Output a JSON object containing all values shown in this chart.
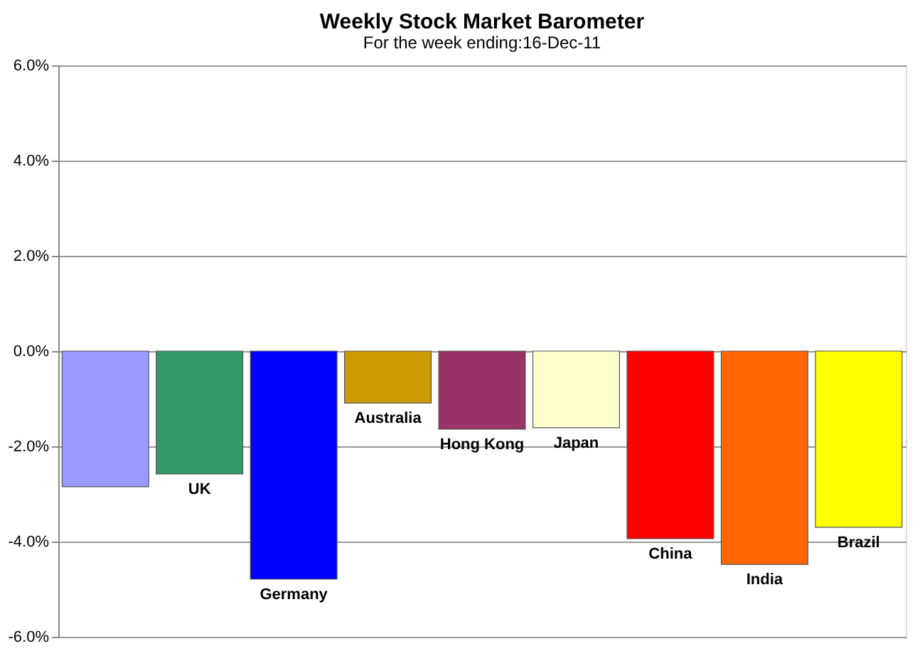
{
  "chart_data": {
    "type": "bar",
    "title": "Weekly Stock Market Barometer",
    "subtitle": "For the week ending:16-Dec-11",
    "categories": [
      null,
      "UK",
      "Germany",
      "Australia",
      "Hong Kong",
      "Japan",
      "China",
      "India",
      "Brazil"
    ],
    "values": [
      -2.85,
      -2.58,
      -4.79,
      -1.09,
      -1.64,
      -1.61,
      -3.94,
      -4.48,
      -3.7
    ],
    "colors": [
      "#9999ff",
      "#339966",
      "#0000ff",
      "#cc9900",
      "#993366",
      "#ffffcc",
      "#ff0000",
      "#ff6600",
      "#ffff00"
    ],
    "ylim": [
      -6,
      6
    ],
    "yticks": [
      {
        "value": -6,
        "label": "-6.0%"
      },
      {
        "value": -4,
        "label": "-4.0%"
      },
      {
        "value": -2,
        "label": "-2.0%"
      },
      {
        "value": 0,
        "label": "0.0%"
      },
      {
        "value": 2,
        "label": "2.0%"
      },
      {
        "value": 4,
        "label": "4.0%"
      },
      {
        "value": 6,
        "label": "6.0%"
      }
    ],
    "grid": "y",
    "tick_labels": "y"
  }
}
